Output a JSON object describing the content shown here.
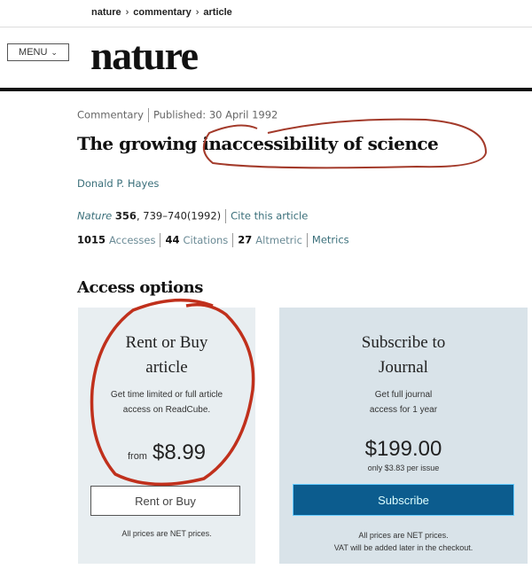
{
  "breadcrumb": [
    "nature",
    "commentary",
    "article"
  ],
  "header": {
    "menu_label": "MENU",
    "logo": "nature"
  },
  "article": {
    "type": "Commentary",
    "published": "Published: 30 April 1992",
    "title_start": "The growing ",
    "title_highlight": "inaccessibility of science",
    "author": "Donald P. Hayes",
    "journal": "Nature",
    "volume": "356",
    "pages": ", 739–740(1992)",
    "cite_link": "Cite this article"
  },
  "metrics": {
    "accesses_count": "1015",
    "accesses_label": "Accesses",
    "citations_count": "44",
    "citations_label": "Citations",
    "altmetric_count": "27",
    "altmetric_label": "Altmetric",
    "metrics_link": "Metrics"
  },
  "access": {
    "heading": "Access options",
    "rent": {
      "title_1": "Rent or Buy",
      "title_2": "article",
      "desc_1": "Get time limited or full article",
      "desc_2": "access on ReadCube.",
      "from": "from",
      "price": "$8.99",
      "button": "Rent or Buy",
      "note": "All prices are NET prices."
    },
    "subscribe": {
      "title_1": "Subscribe to",
      "title_2": "Journal",
      "desc_1": "Get full journal",
      "desc_2": "access for 1 year",
      "price": "$199.00",
      "per_issue": "only $3.83 per issue",
      "button": "Subscribe",
      "note_1": "All prices are NET prices.",
      "note_2": "VAT will be added later in the checkout."
    }
  },
  "colors": {
    "accent": "#0c5c8e",
    "annotation": "#c0301c",
    "link": "#3a6f7a"
  }
}
